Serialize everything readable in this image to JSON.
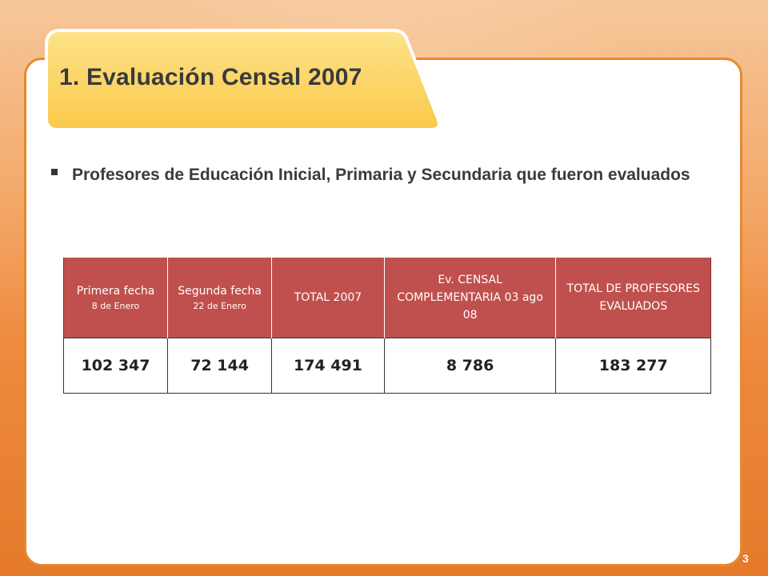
{
  "title": "1. Evaluación Censal 2007",
  "bullet": "Profesores de Educación Inicial, Primaria y Secundaria que fueron evaluados",
  "table": {
    "headers": [
      {
        "main": "Primera fecha",
        "sub": "8 de Enero"
      },
      {
        "main": "Segunda fecha",
        "sub": "22 de Enero"
      },
      {
        "main": "TOTAL 2007",
        "sub": ""
      },
      {
        "main": "Ev. CENSAL COMPLEMENTARIA 03 ago 08",
        "sub": ""
      },
      {
        "main": "TOTAL DE PROFESORES EVALUADOS",
        "sub": ""
      }
    ],
    "row": [
      "102 347",
      "72 144",
      "174 491",
      "8 786",
      "183 277"
    ],
    "header_color": "#c0504d"
  },
  "page_number": "3",
  "colors": {
    "frame": "#e8882e",
    "title_tab": "#fcd56a"
  }
}
